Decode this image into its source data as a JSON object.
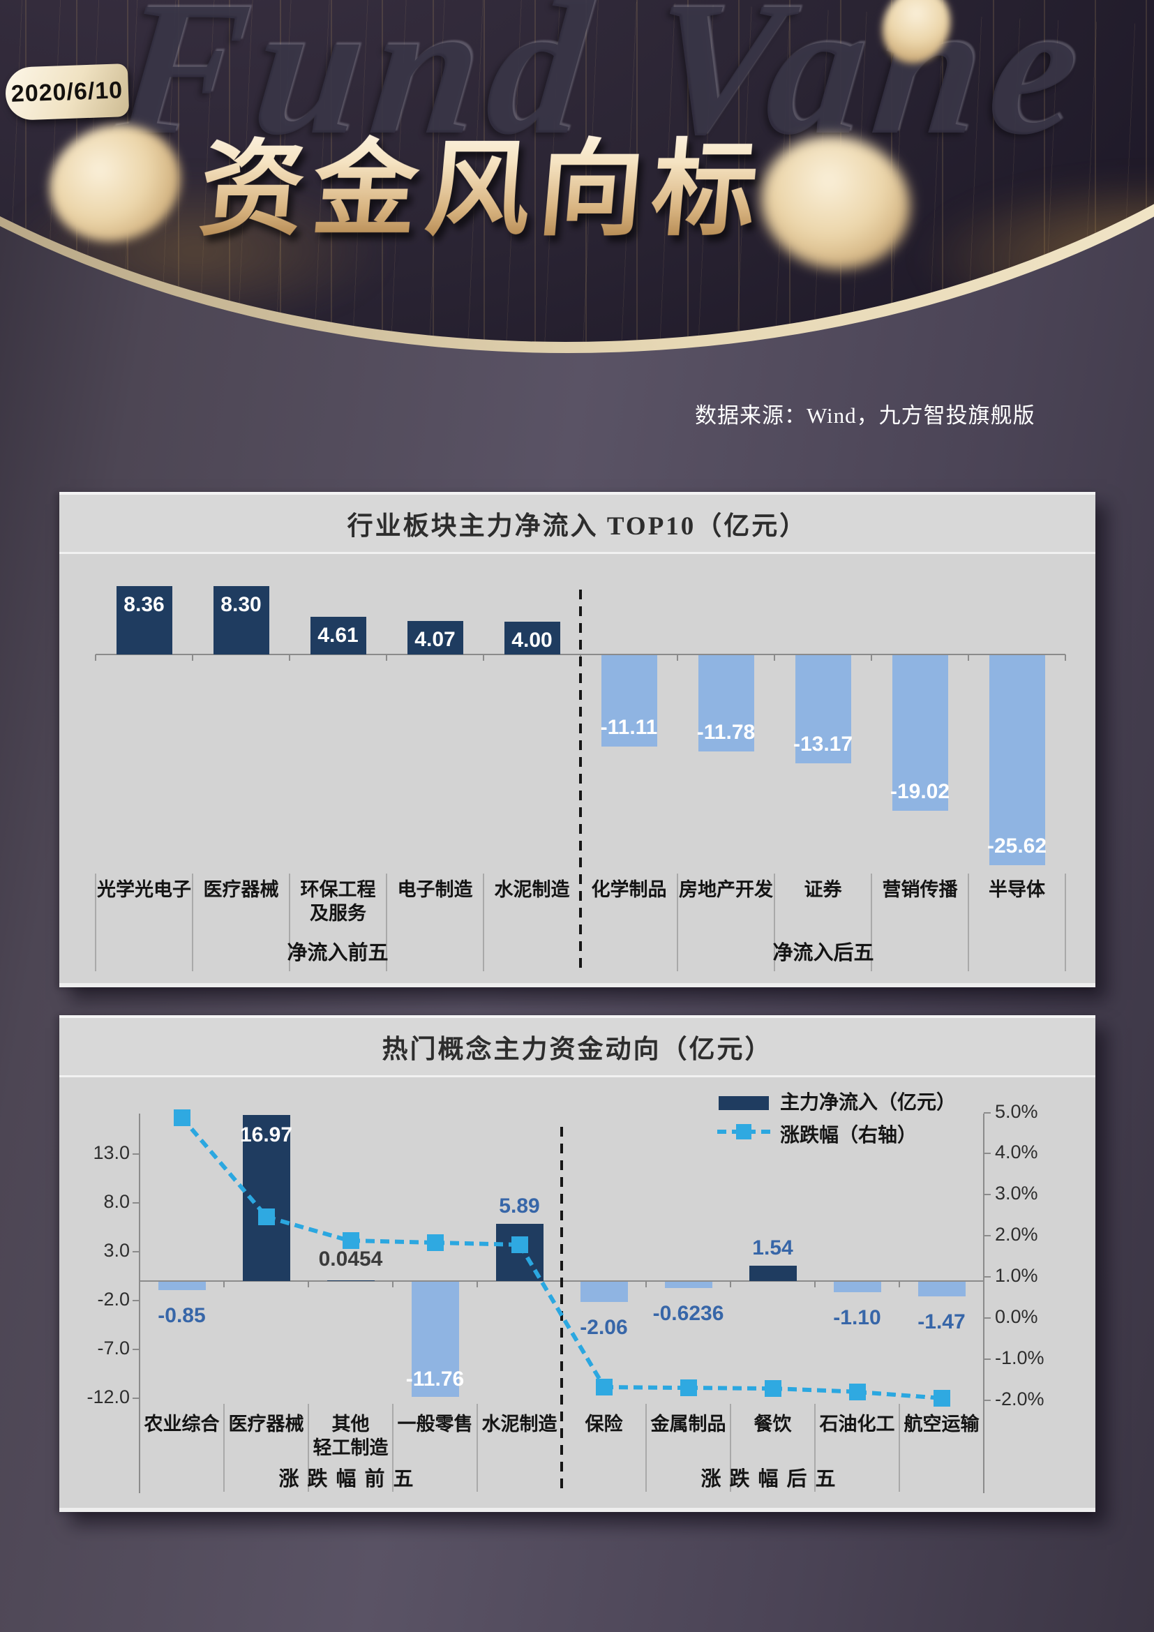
{
  "header": {
    "date": "2020/6/10",
    "main_title": "资金风向标",
    "ghost_title": "Fund Vane",
    "source_note": "数据来源：Wind，九方智投旗舰版"
  },
  "colors": {
    "bar_positive": "#1f3c60",
    "bar_negative": "#8fb4e2",
    "line": "#2ba7e0",
    "value_label_blue": "#3766a8",
    "card_bg": "#d3d3d3",
    "gold_accent": "#e6d7b4"
  },
  "chart_data": [
    {
      "id": "industry-netflow-top10",
      "type": "bar",
      "title": "行业板块主力净流入 TOP10（亿元）",
      "categories": [
        "光学光电子",
        "医疗器械",
        "环保工程及服务",
        "电子制造",
        "水泥制造",
        "化学制品",
        "房地产开发",
        "证券",
        "营销传播",
        "半导体"
      ],
      "categories_lines": [
        [
          "光学光电子"
        ],
        [
          "医疗器械"
        ],
        [
          "环保工程",
          "及服务"
        ],
        [
          "电子制造"
        ],
        [
          "水泥制造"
        ],
        [
          "化学制品"
        ],
        [
          "房地产开发"
        ],
        [
          "证券"
        ],
        [
          "营销传播"
        ],
        [
          "半导体"
        ]
      ],
      "values": [
        8.36,
        8.3,
        4.61,
        4.07,
        4.0,
        -11.11,
        -11.78,
        -13.17,
        -19.02,
        -25.62
      ],
      "value_labels": [
        "8.36",
        "8.30",
        "4.61",
        "4.07",
        "4.00",
        "-11.11",
        "-11.78",
        "-13.17",
        "-19.02",
        "-25.62"
      ],
      "group_labels": [
        "净流入前五",
        "净流入后五"
      ],
      "ylim": [
        -28,
        11
      ],
      "grid": false,
      "legend_position": "none"
    },
    {
      "id": "hot-concept-flow",
      "type": "bar+line-dual-axis",
      "title": "热门概念主力资金动向（亿元）",
      "categories": [
        "农业综合",
        "医疗器械",
        "其他轻工制造",
        "一般零售",
        "水泥制造",
        "保险",
        "金属制品",
        "餐饮",
        "石油化工",
        "航空运输"
      ],
      "categories_lines": [
        [
          "农业综合"
        ],
        [
          "医疗器械"
        ],
        [
          "其他",
          "轻工制造"
        ],
        [
          "一般零售"
        ],
        [
          "水泥制造"
        ],
        [
          "保险"
        ],
        [
          "金属制品"
        ],
        [
          "餐饮"
        ],
        [
          "石油化工"
        ],
        [
          "航空运输"
        ]
      ],
      "series": [
        {
          "name": "主力净流入（亿元）",
          "type": "bar",
          "axis": "left",
          "values": [
            -0.85,
            16.97,
            0.0454,
            -11.76,
            5.89,
            -2.06,
            -0.6236,
            1.54,
            -1.1,
            -1.47
          ],
          "value_labels": [
            "-0.85",
            "16.97",
            "0.0454",
            "-11.76",
            "5.89",
            "-2.06",
            "-0.6236",
            "1.54",
            "-1.10",
            "-1.47"
          ]
        },
        {
          "name": "涨跌幅（右轴）",
          "type": "line",
          "axis": "right",
          "values_pct_estimated": [
            4.88,
            2.47,
            1.88,
            1.83,
            1.78,
            -1.68,
            -1.7,
            -1.72,
            -1.8,
            -1.95
          ]
        }
      ],
      "left_axis": {
        "tick_labels": [
          "13.0",
          "8.0",
          "3.0",
          "-2.0",
          "-7.0",
          "-12.0"
        ],
        "tick_values": [
          13,
          8,
          3,
          -2,
          -7,
          -12
        ]
      },
      "right_axis": {
        "tick_labels": [
          "5.0%",
          "4.0%",
          "3.0%",
          "2.0%",
          "1.0%",
          "0.0%",
          "-1.0%",
          "-2.0%"
        ],
        "tick_values": [
          5,
          4,
          3,
          2,
          1,
          0,
          -1,
          -2
        ]
      },
      "group_labels": [
        "涨跌幅前五",
        "涨跌幅后五"
      ],
      "grid": false,
      "legend_position": "top-right-inside"
    }
  ]
}
